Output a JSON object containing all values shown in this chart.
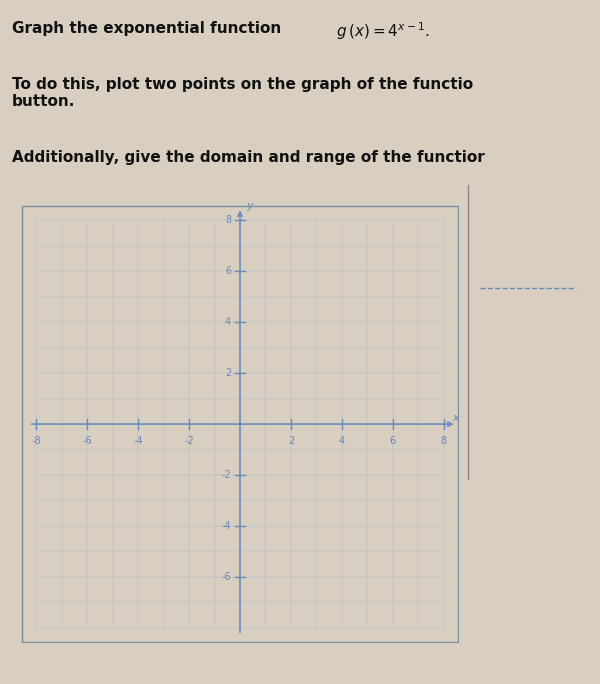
{
  "bg_color": "#d8cfc0",
  "graph_bg": "#ccc4b4",
  "axis_color": "#6688bb",
  "grid_color": "#a8bcd0",
  "text_color": "#111111",
  "xlim": [
    -8,
    8
  ],
  "ylim": [
    -8,
    8
  ],
  "xticks": [
    -8,
    -6,
    -4,
    -2,
    2,
    4,
    6,
    8
  ],
  "yticks": [
    -6,
    -4,
    -2,
    2,
    4,
    6,
    8
  ],
  "tick_fontsize": 7,
  "xlabel": "x",
  "ylabel": "y",
  "line1a": "Graph the exponential function ",
  "line1b": "g (x) = 4",
  "line1b_exp": "x−1",
  "line1b_end": ".",
  "line2": "To do this, plot two points on the graph of the functio",
  "line3": "button.",
  "line4": "Additionally, give the domain and range of the functior"
}
